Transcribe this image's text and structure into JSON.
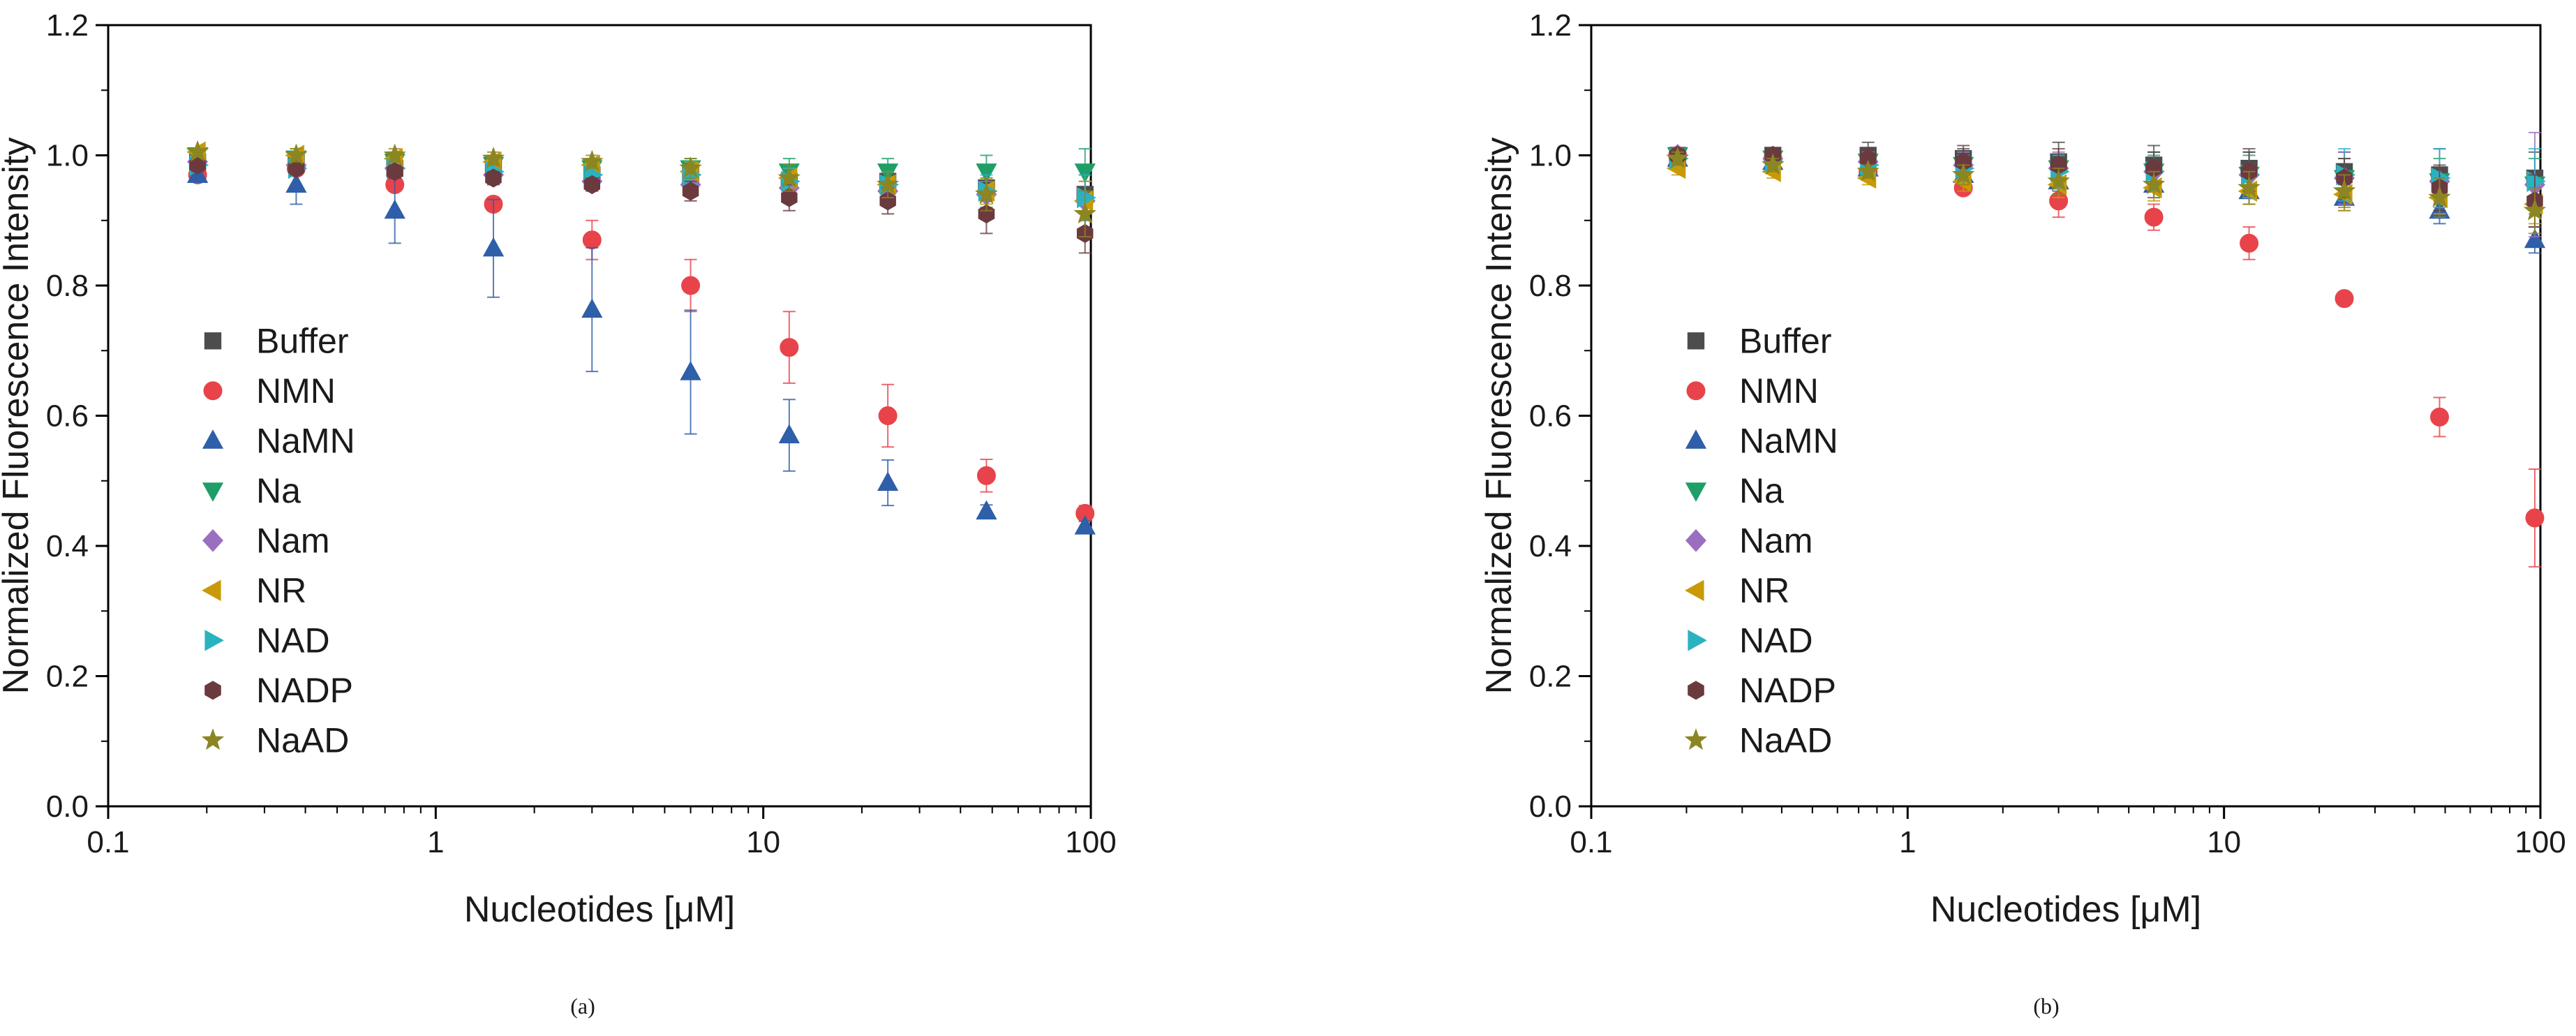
{
  "figure": {
    "captions": [
      "(a)",
      "(b)"
    ]
  },
  "chart_data": [
    {
      "type": "scatter",
      "panel": "(a)",
      "title": "",
      "xlabel": "Nucleotides [μM]",
      "ylabel": "Normalized Fluorescence Intensity",
      "xscale": "log",
      "xlim": [
        0.1,
        100
      ],
      "ylim": [
        0.0,
        1.2
      ],
      "xticks": [
        {
          "value": 0.1,
          "label": "0.1"
        },
        {
          "value": 1,
          "label": "1"
        },
        {
          "value": 10,
          "label": "10"
        },
        {
          "value": 100,
          "label": "100"
        }
      ],
      "yticks": [
        {
          "value": 0.0,
          "label": "0.0"
        },
        {
          "value": 0.2,
          "label": "0.2"
        },
        {
          "value": 0.4,
          "label": "0.4"
        },
        {
          "value": 0.6,
          "label": "0.6"
        },
        {
          "value": 0.8,
          "label": "0.8"
        },
        {
          "value": 1.0,
          "label": "1.0"
        },
        {
          "value": 1.2,
          "label": "1.2"
        }
      ],
      "legend_position": "left-center",
      "x": [
        0.1875,
        0.375,
        0.75,
        1.5,
        3,
        6,
        12,
        24,
        48,
        96
      ],
      "series": [
        {
          "name": "Buffer",
          "marker": "square",
          "color": "#4d4d4d",
          "values": [
            0.99,
            0.99,
            0.98,
            0.98,
            0.97,
            0.97,
            0.96,
            0.96,
            0.95,
            0.94
          ],
          "errors": [
            0.01,
            0.01,
            0.01,
            0.01,
            0.01,
            0.02,
            0.02,
            0.02,
            0.03,
            0.03
          ]
        },
        {
          "name": "NMN",
          "marker": "circle",
          "color": "#e8434a",
          "values": [
            0.97,
            0.98,
            0.955,
            0.925,
            0.87,
            0.8,
            0.705,
            0.6,
            0.508,
            0.45
          ],
          "errors": [
            0.01,
            0.01,
            0.01,
            0.01,
            0.03,
            0.04,
            0.055,
            0.048,
            0.025,
            0.012
          ]
        },
        {
          "name": "NaMN",
          "marker": "triangle-up",
          "color": "#2e5fa8",
          "values": [
            0.97,
            0.955,
            0.915,
            0.857,
            0.763,
            0.667,
            0.57,
            0.497,
            0.453,
            0.43
          ],
          "errors": [
            0.01,
            0.03,
            0.05,
            0.075,
            0.095,
            0.095,
            0.055,
            0.035,
            0.01,
            0.008
          ]
        },
        {
          "name": "Na",
          "marker": "triangle-down",
          "color": "#1f9e67",
          "values": [
            1.0,
            0.995,
            0.99,
            0.985,
            0.98,
            0.98,
            0.975,
            0.975,
            0.975,
            0.975
          ],
          "errors": [
            0.01,
            0.01,
            0.01,
            0.01,
            0.015,
            0.015,
            0.02,
            0.02,
            0.025,
            0.035
          ]
        },
        {
          "name": "Nam",
          "marker": "diamond",
          "color": "#9b6fc0",
          "values": [
            0.99,
            0.985,
            0.98,
            0.97,
            0.96,
            0.955,
            0.95,
            0.945,
            0.94,
            0.93
          ],
          "errors": [
            0.01,
            0.01,
            0.01,
            0.01,
            0.01,
            0.015,
            0.015,
            0.02,
            0.02,
            0.03
          ]
        },
        {
          "name": "NR",
          "marker": "triangle-left",
          "color": "#c99a06",
          "values": [
            1.005,
            1.0,
            0.995,
            0.99,
            0.985,
            0.975,
            0.965,
            0.955,
            0.945,
            0.93
          ],
          "errors": [
            0.005,
            0.01,
            0.01,
            0.01,
            0.01,
            0.015,
            0.015,
            0.02,
            0.02,
            0.03
          ]
        },
        {
          "name": "NAD",
          "marker": "triangle-right",
          "color": "#2bb2c0",
          "values": [
            0.985,
            0.98,
            0.98,
            0.975,
            0.97,
            0.97,
            0.96,
            0.955,
            0.945,
            0.935
          ],
          "errors": [
            0.01,
            0.01,
            0.01,
            0.01,
            0.015,
            0.015,
            0.02,
            0.02,
            0.025,
            0.035
          ]
        },
        {
          "name": "NADP",
          "marker": "hexagon",
          "color": "#6b3a3f",
          "values": [
            0.985,
            0.98,
            0.975,
            0.965,
            0.955,
            0.945,
            0.935,
            0.93,
            0.91,
            0.88
          ],
          "errors": [
            0.01,
            0.01,
            0.01,
            0.01,
            0.01,
            0.015,
            0.02,
            0.02,
            0.03,
            0.03
          ]
        },
        {
          "name": "NaAD",
          "marker": "star",
          "color": "#8b8622",
          "values": [
            1.005,
            1.0,
            1.0,
            0.995,
            0.99,
            0.98,
            0.965,
            0.955,
            0.94,
            0.91
          ],
          "errors": [
            0.005,
            0.01,
            0.01,
            0.01,
            0.01,
            0.015,
            0.02,
            0.02,
            0.025,
            0.035
          ]
        }
      ]
    },
    {
      "type": "scatter",
      "panel": "(b)",
      "title": "",
      "xlabel": "Nucleotides [μM]",
      "ylabel": "Normalized Fluorescence Intensity",
      "xscale": "log",
      "xlim": [
        0.1,
        100
      ],
      "ylim": [
        0.0,
        1.2
      ],
      "xticks": [
        {
          "value": 0.1,
          "label": "0.1"
        },
        {
          "value": 1,
          "label": "1"
        },
        {
          "value": 10,
          "label": "10"
        },
        {
          "value": 100,
          "label": "100"
        }
      ],
      "yticks": [
        {
          "value": 0.0,
          "label": "0.0"
        },
        {
          "value": 0.2,
          "label": "0.2"
        },
        {
          "value": 0.4,
          "label": "0.4"
        },
        {
          "value": 0.6,
          "label": "0.6"
        },
        {
          "value": 0.8,
          "label": "0.8"
        },
        {
          "value": 1.0,
          "label": "1.0"
        },
        {
          "value": 1.2,
          "label": "1.2"
        }
      ],
      "legend_position": "left-center",
      "x": [
        0.1875,
        0.375,
        0.75,
        1.5,
        3,
        6,
        12,
        24,
        48,
        96
      ],
      "series": [
        {
          "name": "Buffer",
          "marker": "square",
          "color": "#4d4d4d",
          "values": [
            1.0,
            1.0,
            1.0,
            0.995,
            0.99,
            0.985,
            0.98,
            0.975,
            0.97,
            0.965
          ],
          "errors": [
            0.01,
            0.01,
            0.02,
            0.02,
            0.03,
            0.03,
            0.03,
            0.03,
            0.04,
            0.04
          ]
        },
        {
          "name": "NMN",
          "marker": "circle",
          "color": "#e8434a",
          "values": [
            1.0,
            0.995,
            0.975,
            0.95,
            0.93,
            0.905,
            0.865,
            0.78,
            0.598,
            0.443
          ],
          "errors": [
            0.01,
            0.01,
            0.01,
            0.01,
            0.025,
            0.02,
            0.025,
            0.005,
            0.03,
            0.075
          ]
        },
        {
          "name": "NaMN",
          "marker": "triangle-up",
          "color": "#2e5fa8",
          "values": [
            0.995,
            0.99,
            0.98,
            0.97,
            0.96,
            0.955,
            0.945,
            0.935,
            0.915,
            0.87
          ],
          "errors": [
            0.01,
            0.01,
            0.01,
            0.01,
            0.015,
            0.02,
            0.02,
            0.02,
            0.02,
            0.02
          ]
        },
        {
          "name": "Na",
          "marker": "triangle-down",
          "color": "#1f9e67",
          "values": [
            1.0,
            0.995,
            0.99,
            0.985,
            0.98,
            0.975,
            0.97,
            0.965,
            0.96,
            0.955
          ],
          "errors": [
            0.01,
            0.01,
            0.015,
            0.02,
            0.02,
            0.025,
            0.03,
            0.03,
            0.035,
            0.04
          ]
        },
        {
          "name": "Nam",
          "marker": "diamond",
          "color": "#9b6fc0",
          "values": [
            1.0,
            0.995,
            0.99,
            0.985,
            0.98,
            0.975,
            0.97,
            0.965,
            0.96,
            0.955
          ],
          "errors": [
            0.01,
            0.01,
            0.015,
            0.02,
            0.025,
            0.03,
            0.035,
            0.04,
            0.05,
            0.08
          ]
        },
        {
          "name": "NR",
          "marker": "triangle-left",
          "color": "#c99a06",
          "values": [
            0.98,
            0.975,
            0.965,
            0.96,
            0.955,
            0.95,
            0.945,
            0.94,
            0.935,
            0.925
          ],
          "errors": [
            0.01,
            0.01,
            0.01,
            0.015,
            0.02,
            0.02,
            0.02,
            0.025,
            0.025,
            0.03
          ]
        },
        {
          "name": "NAD",
          "marker": "triangle-right",
          "color": "#2bb2c0",
          "values": [
            0.995,
            0.99,
            0.985,
            0.98,
            0.975,
            0.975,
            0.97,
            0.97,
            0.965,
            0.96
          ],
          "errors": [
            0.01,
            0.01,
            0.015,
            0.02,
            0.025,
            0.03,
            0.035,
            0.04,
            0.045,
            0.05
          ]
        },
        {
          "name": "NADP",
          "marker": "hexagon",
          "color": "#6b3a3f",
          "values": [
            1.0,
            1.0,
            0.995,
            0.99,
            0.985,
            0.98,
            0.975,
            0.965,
            0.95,
            0.93
          ],
          "errors": [
            0.01,
            0.01,
            0.015,
            0.02,
            0.025,
            0.025,
            0.03,
            0.03,
            0.035,
            0.04
          ]
        },
        {
          "name": "NaAD",
          "marker": "star",
          "color": "#8b8622",
          "values": [
            0.995,
            0.985,
            0.975,
            0.97,
            0.96,
            0.955,
            0.95,
            0.945,
            0.935,
            0.915
          ],
          "errors": [
            0.01,
            0.01,
            0.01,
            0.015,
            0.02,
            0.02,
            0.025,
            0.025,
            0.03,
            0.035
          ]
        }
      ]
    }
  ]
}
